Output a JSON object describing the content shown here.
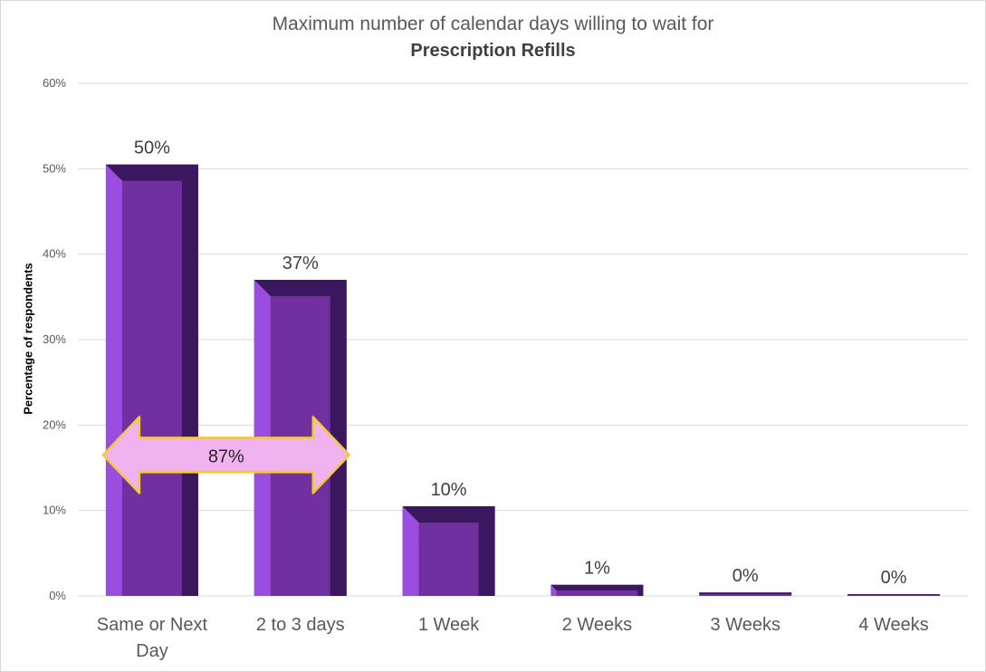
{
  "chart_data": {
    "type": "bar",
    "title": "Maximum number of calendar days willing to wait for",
    "subtitle": "Prescription Refills",
    "ylabel": "Percentage of respondents",
    "xlabel": "",
    "ylim": [
      0,
      60
    ],
    "yticks": [
      0,
      10,
      20,
      30,
      40,
      50,
      60
    ],
    "ytick_labels": [
      "0%",
      "10%",
      "20%",
      "30%",
      "40%",
      "50%",
      "60%"
    ],
    "grid": true,
    "legend": "none",
    "categories": [
      "Same or Next Day",
      "2 to 3 days",
      "1 Week",
      "2 Weeks",
      "3 Weeks",
      "4 Weeks"
    ],
    "category_lines": [
      [
        "Same or Next",
        "Day"
      ],
      [
        "2 to 3 days"
      ],
      [
        "1 Week"
      ],
      [
        "2 Weeks"
      ],
      [
        "3 Weeks"
      ],
      [
        "4 Weeks"
      ]
    ],
    "values": [
      50.5,
      37,
      10.5,
      1.3,
      0.4,
      0.2
    ],
    "data_labels": [
      "50%",
      "37%",
      "10%",
      "1%",
      "0%",
      "0%"
    ],
    "annotation": {
      "text": "87%",
      "shape": "double-arrow",
      "spans": [
        "Same or Next Day",
        "2 to 3 days"
      ],
      "y": 16.5
    },
    "colors": {
      "bar_face": "#7030a0",
      "bar_light": "#9b4de0",
      "bar_dark": "#3b1760",
      "arrow_fill": "#f0b3f0",
      "arrow_stroke": "#f5c83a",
      "grid": "#d9d9d9",
      "tick_text": "#595959"
    }
  }
}
